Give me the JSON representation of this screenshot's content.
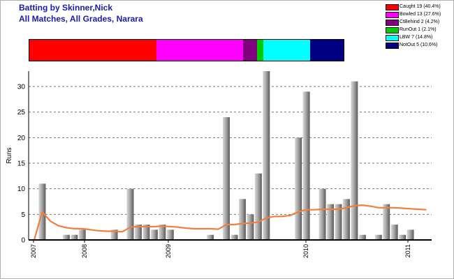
{
  "title": "Batting by Skinner,Nick",
  "subtitle": "All Matches, All Grades, Narara",
  "legend": [
    {
      "label": "Caught 19 (40.4%)",
      "color": "#ff0000"
    },
    {
      "label": "Bowled 13 (27.6%)",
      "color": "#ff00ff"
    },
    {
      "label": "CtBehind 2 (4.2%)",
      "color": "#800080"
    },
    {
      "label": "RunOut 1 (2.1%)",
      "color": "#00cc00"
    },
    {
      "label": "LBW 7 (14.8%)",
      "color": "#00ffff"
    },
    {
      "label": "NotOut 5 (10.6%)",
      "color": "#000080"
    }
  ],
  "chart_data": [
    {
      "type": "bar",
      "title": "",
      "categories": [
        "Caught",
        "Bowled",
        "CtBehind",
        "RunOut",
        "LBW",
        "NotOut"
      ],
      "values": [
        19,
        13,
        2,
        1,
        7,
        5
      ],
      "percentages": [
        40.4,
        27.6,
        4.2,
        2.1,
        14.8,
        10.6
      ],
      "colors": [
        "#ff0000",
        "#ff00ff",
        "#800080",
        "#00cc00",
        "#00ffff",
        "#000080"
      ],
      "stacked": true
    },
    {
      "type": "bar",
      "ylabel": "Runs",
      "xlabel": "",
      "ylim": [
        0,
        33
      ],
      "yticks": [
        0,
        5,
        10,
        15,
        20,
        25,
        30
      ],
      "xticks": [
        "2007",
        "2008",
        "2009",
        "2010",
        "2011"
      ],
      "grid": true,
      "series": [
        {
          "type": "bar",
          "values": [
            0,
            11,
            0,
            0,
            1,
            1,
            2,
            0,
            0,
            0,
            2,
            0,
            10,
            3,
            3,
            2,
            3,
            2,
            0,
            0,
            0,
            0,
            1,
            0,
            24,
            1,
            8,
            5,
            13,
            33,
            0,
            0,
            0,
            20,
            29,
            0,
            10,
            7,
            7,
            8,
            31,
            1,
            0,
            1,
            7,
            3,
            1,
            2,
            0,
            0
          ]
        },
        {
          "type": "line",
          "color": "#f08040",
          "values": [
            0,
            5.5,
            3.7,
            2.8,
            2.4,
            2.2,
            2.2,
            2.0,
            1.8,
            1.7,
            1.7,
            1.6,
            2.5,
            2.6,
            2.6,
            2.6,
            2.7,
            2.6,
            2.5,
            2.3,
            2.2,
            2.2,
            2.2,
            2.1,
            3.0,
            3.0,
            3.2,
            3.3,
            3.5,
            4.3,
            4.6,
            4.6,
            4.8,
            5.5,
            5.9,
            5.9,
            6.0,
            6.0,
            6.0,
            6.3,
            6.7,
            6.8,
            6.6,
            6.3,
            6.3,
            6.3,
            6.2,
            6.1,
            6.0,
            5.9
          ]
        }
      ]
    }
  ]
}
